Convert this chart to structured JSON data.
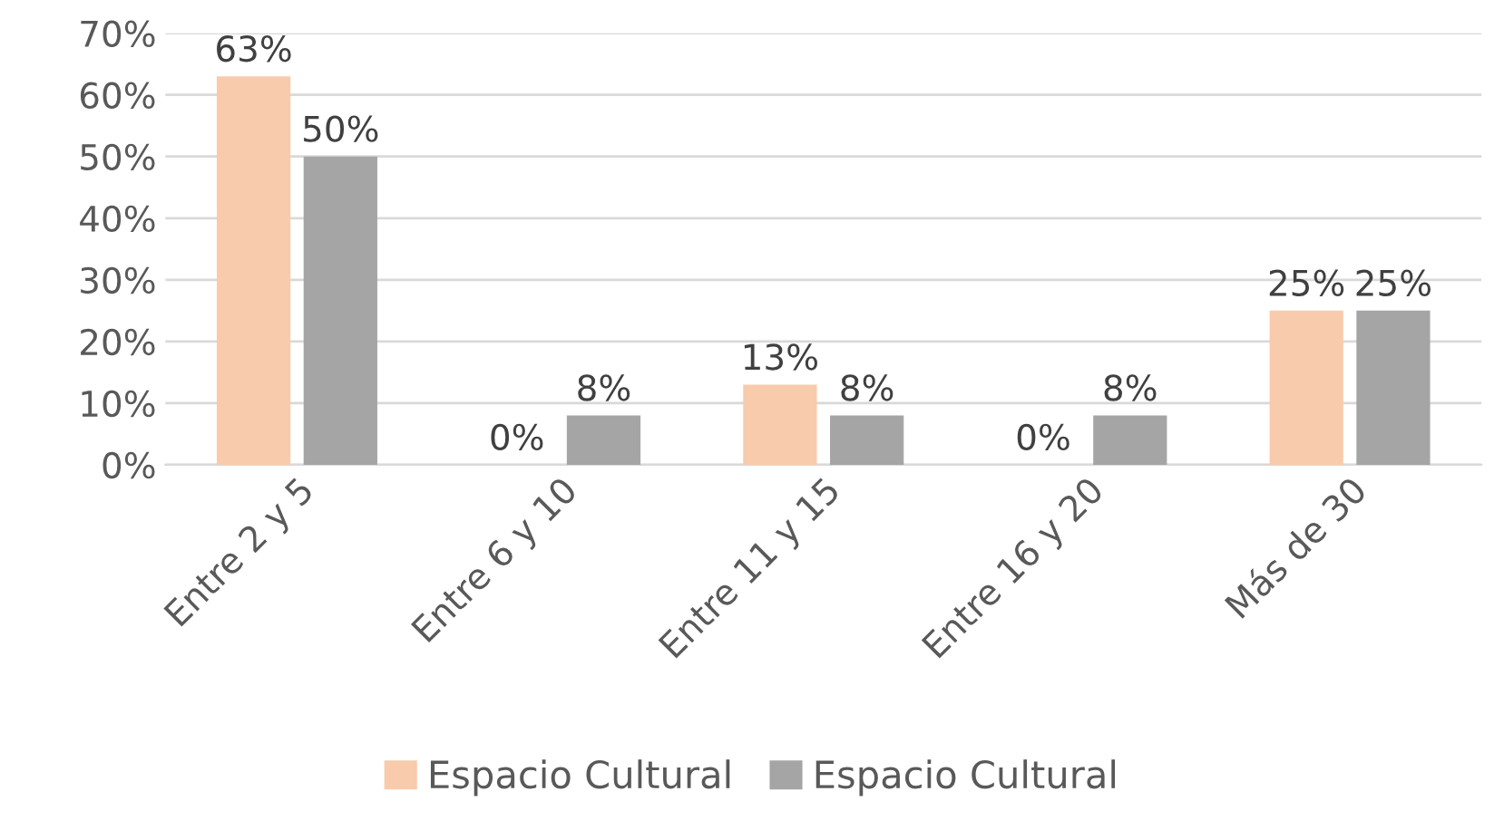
{
  "chart_data": {
    "type": "bar",
    "categories": [
      "Entre 2 y 5",
      "Entre 6 y 10",
      "Entre 11 y 15",
      "Entre 16 y 20",
      "Más de 30"
    ],
    "series": [
      {
        "name": "Espacio Cultural",
        "color": "#f8cbad",
        "values": [
          63,
          0,
          13,
          0,
          25
        ],
        "value_labels": [
          "63%",
          "0%",
          "13%",
          "0%",
          "25%"
        ]
      },
      {
        "name": "Espacio Cultural",
        "color": "#a5a5a5",
        "values": [
          50,
          8,
          8,
          8,
          25
        ],
        "value_labels": [
          "50%",
          "8%",
          "8%",
          "8%",
          "25%"
        ]
      }
    ],
    "ylim": [
      0,
      70
    ],
    "yticks": [
      {
        "value": 0,
        "label": "0%"
      },
      {
        "value": 10,
        "label": "10%"
      },
      {
        "value": 20,
        "label": "20%"
      },
      {
        "value": 30,
        "label": "30%"
      },
      {
        "value": 40,
        "label": "40%"
      },
      {
        "value": 50,
        "label": "50%"
      },
      {
        "value": 60,
        "label": "60%"
      },
      {
        "value": 70,
        "label": "70%"
      }
    ],
    "grid": "y",
    "legend": "bottom"
  }
}
